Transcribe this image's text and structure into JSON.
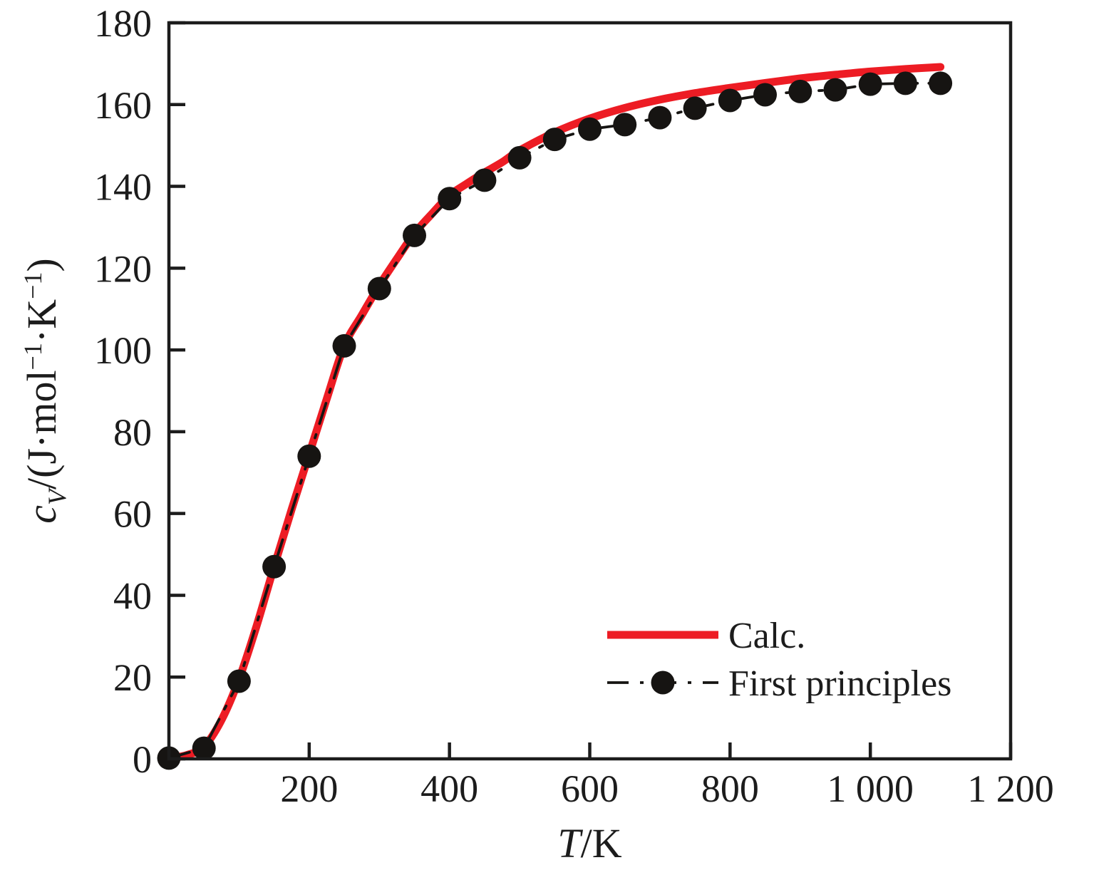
{
  "figure": {
    "background": "#ffffff",
    "text_color": "#1c1c1c",
    "axis_color": "#1c1c1c"
  },
  "chart_data": {
    "type": "line",
    "title": "",
    "xlabel": "T/K",
    "xlabel_segments": [
      {
        "t": "T",
        "it": true
      },
      {
        "t": "/K"
      }
    ],
    "ylabel": "cV/(J·mol−1·K−1)",
    "ylabel_segments": [
      {
        "t": "c",
        "it": true
      },
      {
        "t": "V",
        "it": true,
        "pos": "sub"
      },
      {
        "t": "/(J·mol"
      },
      {
        "t": "−1",
        "pos": "sup"
      },
      {
        "t": "·K"
      },
      {
        "t": "−1",
        "pos": "sup"
      },
      {
        "t": ")"
      }
    ],
    "xlim": [
      0,
      1200
    ],
    "ylim": [
      0,
      180
    ],
    "x_ticks": [
      200,
      400,
      600,
      800,
      1000,
      1200
    ],
    "x_tick_labels": [
      "200",
      "400",
      "600",
      "800",
      "1 000",
      "1 200"
    ],
    "y_ticks": [
      0,
      20,
      40,
      60,
      80,
      100,
      120,
      140,
      160,
      180
    ],
    "y_tick_labels": [
      "0",
      "20",
      "40",
      "60",
      "80",
      "100",
      "120",
      "140",
      "160",
      "180"
    ],
    "grid": false,
    "legend_position": "inside lower right",
    "series": [
      {
        "name": "Calc.",
        "type": "line",
        "color": "#ed1c24",
        "width": 11,
        "smooth": true,
        "x": [
          0,
          25,
          50,
          75,
          100,
          125,
          150,
          175,
          200,
          225,
          250,
          275,
          300,
          325,
          350,
          375,
          400,
          425,
          450,
          475,
          500,
          550,
          600,
          650,
          700,
          750,
          800,
          850,
          900,
          950,
          1000,
          1050,
          1100
        ],
        "y": [
          0.2,
          0.9,
          3,
          9.5,
          19.5,
          32.5,
          47,
          61,
          74.5,
          88,
          101,
          108.5,
          115.8,
          122.3,
          128.5,
          133.3,
          137.8,
          140.7,
          143.4,
          145.9,
          148.8,
          153.2,
          156.6,
          159.2,
          161.2,
          162.8,
          164.1,
          165.3,
          166.4,
          167.3,
          168.1,
          168.7,
          169.2
        ]
      },
      {
        "name": "First principles",
        "type": "line+marker",
        "color": "#161412",
        "width": 3.8,
        "dash": [
          30,
          16,
          5,
          16
        ],
        "marker": "circle",
        "marker_size": 16.5,
        "x": [
          0,
          50,
          100,
          150,
          200,
          250,
          300,
          350,
          400,
          450,
          500,
          550,
          600,
          650,
          700,
          750,
          800,
          850,
          900,
          950,
          1000,
          1050,
          1100
        ],
        "y": [
          0.2,
          2.6,
          19,
          47,
          74,
          101,
          115,
          128,
          137,
          141.5,
          147,
          151.5,
          154,
          155.1,
          156.8,
          159.1,
          161,
          162.4,
          163.2,
          163.6,
          165,
          165.2,
          165.2
        ]
      }
    ]
  }
}
